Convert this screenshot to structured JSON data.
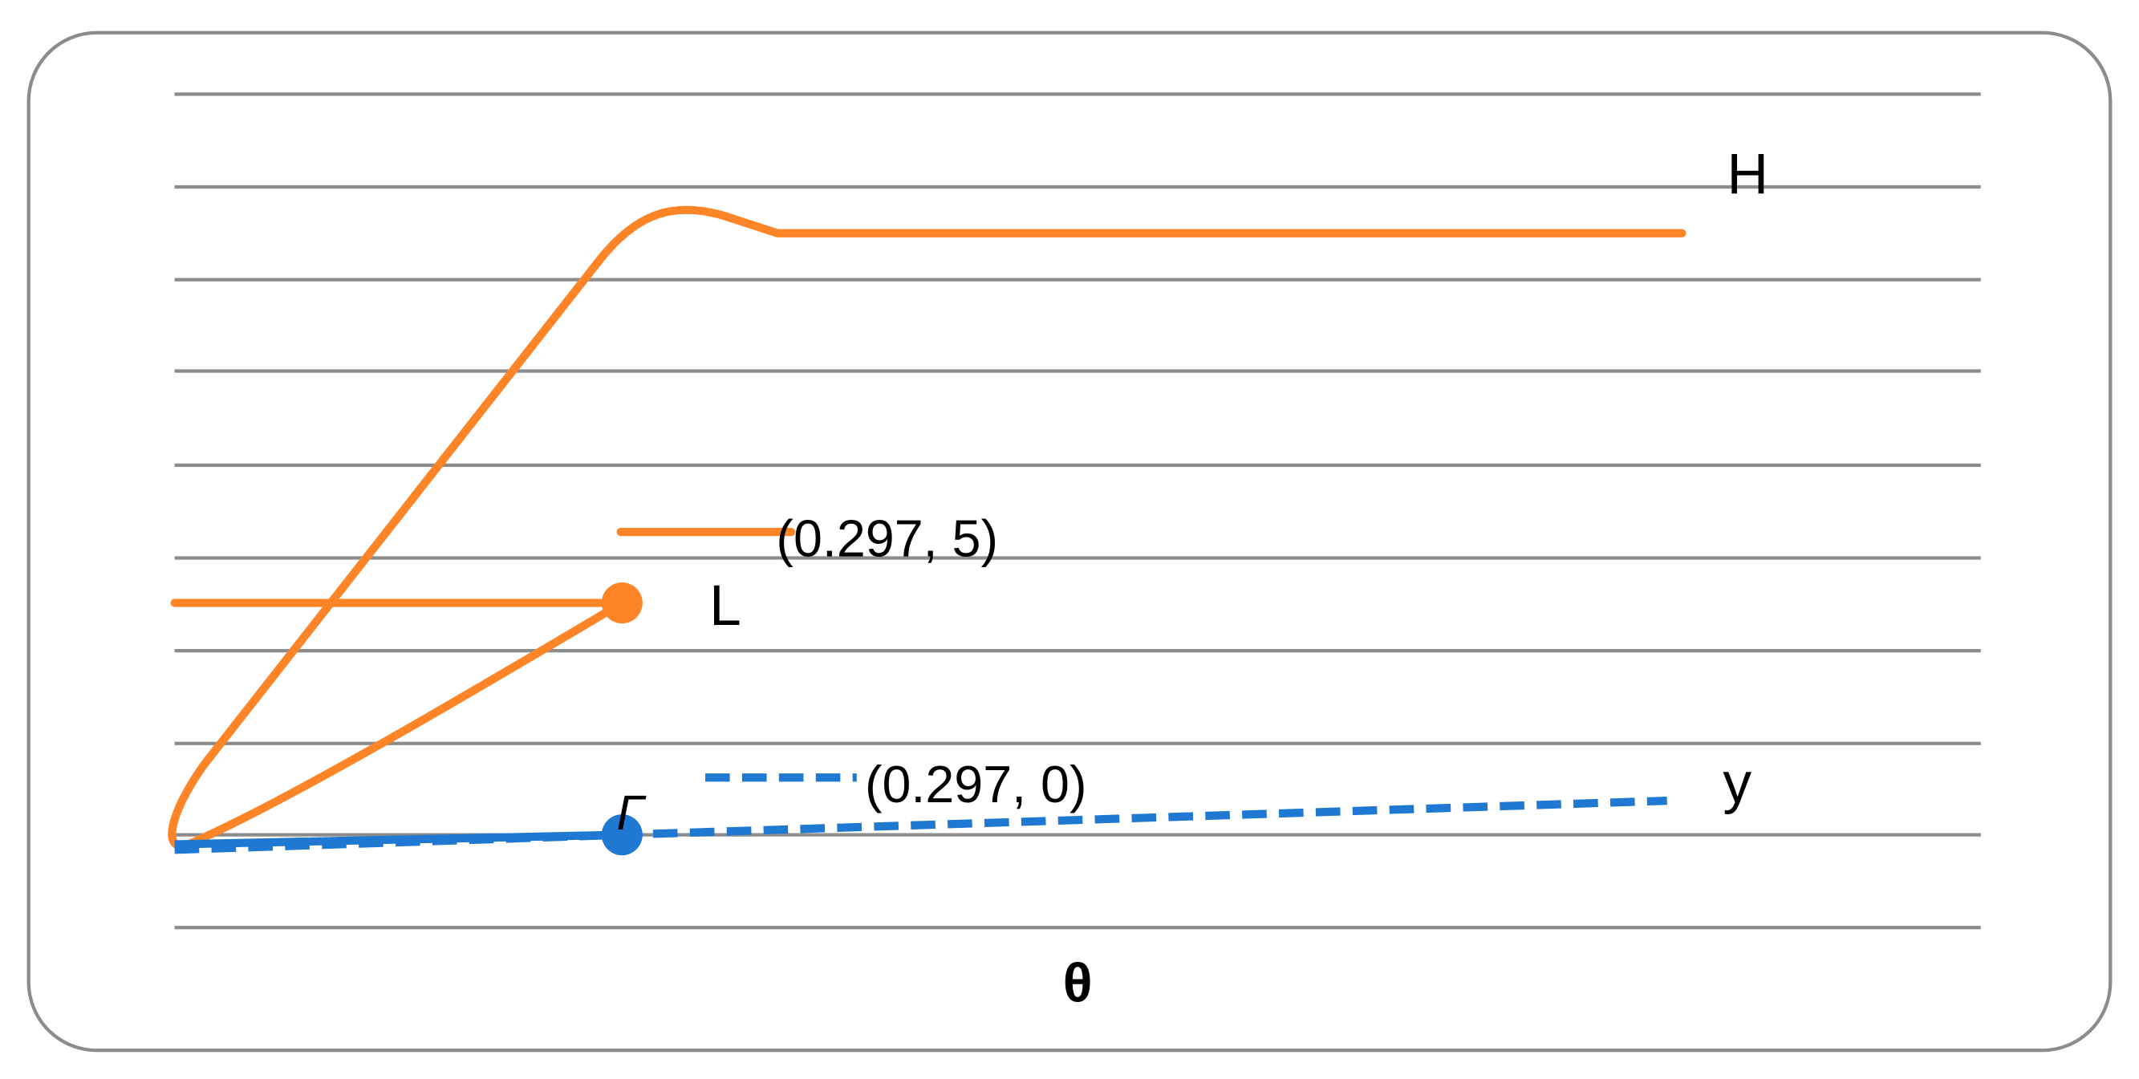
{
  "labels": {
    "high": "H",
    "high_point": "(0.297, 5)",
    "low": "L",
    "low_point": "(0.297, 0)",
    "y": "y",
    "gamma": "Γ",
    "x_axis": "θ"
  }
}
